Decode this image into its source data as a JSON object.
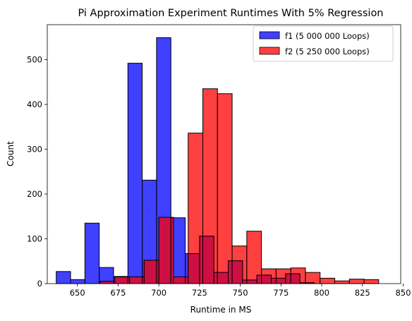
{
  "chart_data": {
    "type": "bar",
    "title": "Pi Approximation Experiment Runtimes With 5% Regression",
    "xlabel": "Runtime in MS",
    "ylabel": "Count",
    "xlim": [
      631.5,
      848.5
    ],
    "ylim": [
      0,
      578
    ],
    "xticks": [
      650,
      675,
      700,
      725,
      750,
      775,
      800,
      825,
      850
    ],
    "yticks": [
      0,
      100,
      200,
      300,
      400,
      500
    ],
    "grid": false,
    "legend_position": "top-right",
    "series": [
      {
        "name": "f1 (5 000 000 Loops)",
        "color": "#0000ff",
        "bins": [
          {
            "x0": 637.0,
            "x1": 645.8,
            "count": 27
          },
          {
            "x0": 645.8,
            "x1": 654.6,
            "count": 9
          },
          {
            "x0": 654.6,
            "x1": 663.4,
            "count": 135
          },
          {
            "x0": 663.4,
            "x1": 672.2,
            "count": 36
          },
          {
            "x0": 672.2,
            "x1": 681.0,
            "count": 16
          },
          {
            "x0": 681.0,
            "x1": 689.8,
            "count": 492
          },
          {
            "x0": 689.8,
            "x1": 698.6,
            "count": 231
          },
          {
            "x0": 698.6,
            "x1": 707.4,
            "count": 549
          },
          {
            "x0": 707.4,
            "x1": 716.2,
            "count": 147
          },
          {
            "x0": 716.2,
            "x1": 725.0,
            "count": 67
          },
          {
            "x0": 725.0,
            "x1": 733.8,
            "count": 106
          },
          {
            "x0": 733.8,
            "x1": 742.6,
            "count": 25
          },
          {
            "x0": 742.6,
            "x1": 751.4,
            "count": 51
          },
          {
            "x0": 751.4,
            "x1": 760.2,
            "count": 8
          },
          {
            "x0": 760.2,
            "x1": 769.0,
            "count": 19
          },
          {
            "x0": 769.0,
            "x1": 777.8,
            "count": 12
          },
          {
            "x0": 777.8,
            "x1": 786.6,
            "count": 22
          },
          {
            "x0": 786.6,
            "x1": 795.4,
            "count": 2
          }
        ]
      },
      {
        "name": "f2 (5 250 000 Loops)",
        "color": "#ff0000",
        "bins": [
          {
            "x0": 664.0,
            "x1": 673.0,
            "count": 5
          },
          {
            "x0": 673.0,
            "x1": 682.0,
            "count": 15
          },
          {
            "x0": 682.0,
            "x1": 691.0,
            "count": 15
          },
          {
            "x0": 691.0,
            "x1": 700.0,
            "count": 52
          },
          {
            "x0": 700.0,
            "x1": 709.0,
            "count": 148
          },
          {
            "x0": 709.0,
            "x1": 718.0,
            "count": 15
          },
          {
            "x0": 718.0,
            "x1": 727.0,
            "count": 336
          },
          {
            "x0": 727.0,
            "x1": 736.0,
            "count": 435
          },
          {
            "x0": 736.0,
            "x1": 745.0,
            "count": 424
          },
          {
            "x0": 745.0,
            "x1": 754.0,
            "count": 84
          },
          {
            "x0": 754.0,
            "x1": 763.0,
            "count": 117
          },
          {
            "x0": 763.0,
            "x1": 772.0,
            "count": 33
          },
          {
            "x0": 772.0,
            "x1": 781.0,
            "count": 33
          },
          {
            "x0": 781.0,
            "x1": 790.0,
            "count": 35
          },
          {
            "x0": 790.0,
            "x1": 799.0,
            "count": 25
          },
          {
            "x0": 799.0,
            "x1": 808.0,
            "count": 12
          },
          {
            "x0": 808.0,
            "x1": 817.0,
            "count": 6
          },
          {
            "x0": 817.0,
            "x1": 826.0,
            "count": 10
          },
          {
            "x0": 826.0,
            "x1": 835.0,
            "count": 9
          }
        ]
      }
    ],
    "overlap_color": "#cc1144"
  }
}
